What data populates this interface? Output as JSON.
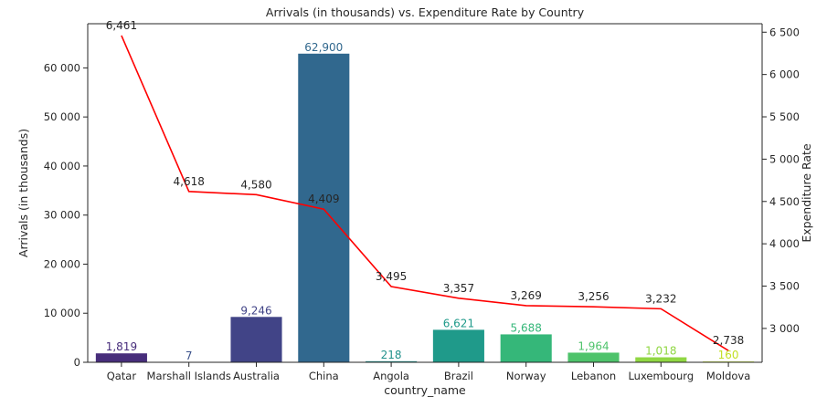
{
  "chart_data": {
    "type": "bar",
    "title": "Arrivals (in thousands) vs. Expenditure Rate by Country",
    "xlabel": "country_name",
    "ylabel": "Arrivals (in thousands)",
    "y2label": "Expenditure Rate",
    "ylim": [
      0,
      69000
    ],
    "y2lim": [
      2600,
      6600
    ],
    "yticks": [
      0,
      10000,
      20000,
      30000,
      40000,
      50000,
      60000
    ],
    "ytick_labels": [
      "0",
      "10 000",
      "20 000",
      "30 000",
      "40 000",
      "50 000",
      "60 000"
    ],
    "y2ticks": [
      3000,
      3500,
      4000,
      4500,
      5000,
      5500,
      6000,
      6500
    ],
    "y2tick_labels": [
      "3 000",
      "3 500",
      "4 000",
      "4 500",
      "5 000",
      "5 500",
      "6 000",
      "6 500"
    ],
    "grid": false,
    "categories": [
      "Qatar",
      "Marshall Islands",
      "Australia",
      "China",
      "Angola",
      "Brazil",
      "Norway",
      "Lebanon",
      "Luxembourg",
      "Moldova"
    ],
    "series": [
      {
        "type": "bar",
        "values": [
          1819,
          7,
          9246,
          62900,
          218,
          6621,
          5688,
          1964,
          1018,
          160
        ],
        "labels": [
          "1,819",
          "7",
          "9,246",
          "62,900",
          "218",
          "6,621",
          "5,688",
          "1,964",
          "1,018",
          "160"
        ],
        "colors": [
          "#472d7b",
          "#3b528b",
          "#414487",
          "#31688e",
          "#21918c",
          "#1f9a8a",
          "#35b779",
          "#4ec36b",
          "#90d743",
          "#c2df23"
        ]
      },
      {
        "type": "line",
        "axis": "y2",
        "color": "#ff0000",
        "values": [
          6461,
          4618,
          4580,
          4409,
          3495,
          3357,
          3269,
          3256,
          3232,
          2738
        ],
        "labels": [
          "6,461",
          "4,618",
          "4,580",
          "4,409",
          "3,495",
          "3,357",
          "3,269",
          "3,256",
          "3,232",
          "2,738"
        ]
      }
    ]
  }
}
